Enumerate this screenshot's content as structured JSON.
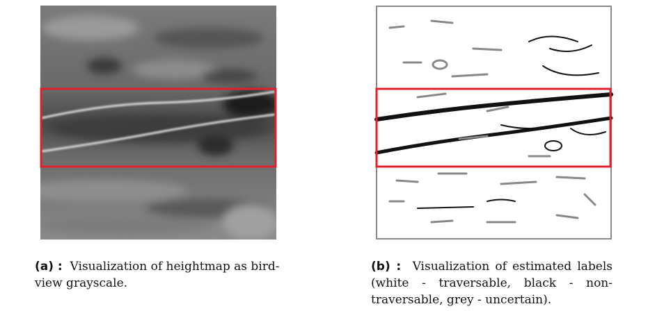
{
  "figures": [
    {
      "label": "(a) :",
      "lines": [
        "Visualization of heightmap as bird-",
        "view grayscale."
      ]
    },
    {
      "label": "(b) :",
      "lines": [
        "Visualization of estimated labels",
        "(white - traversable, black - non-",
        "traversable, grey - uncertain)."
      ]
    }
  ]
}
